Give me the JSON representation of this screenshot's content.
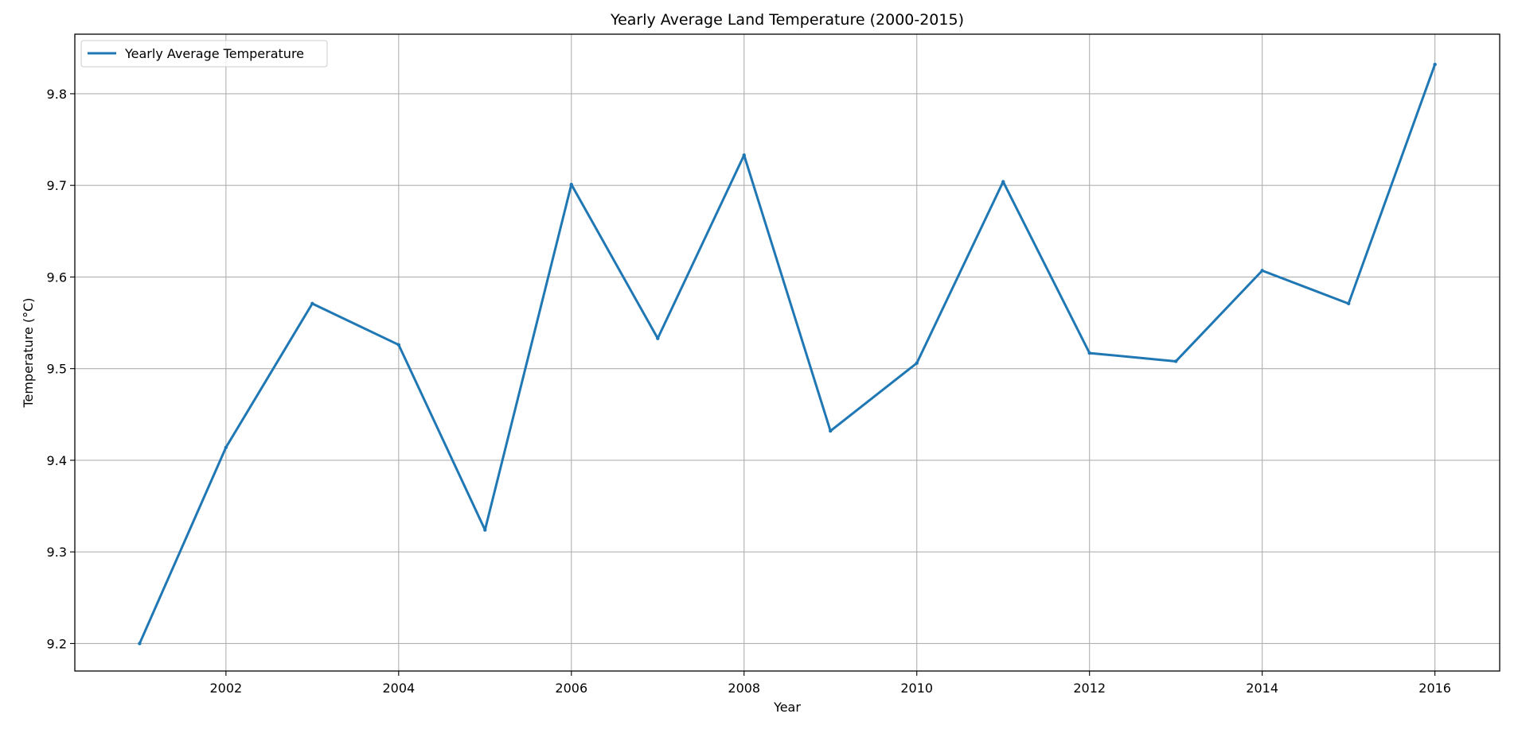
{
  "chart_data": {
    "type": "line",
    "title": "Yearly Average Land Temperature (2000-2015)",
    "xlabel": "Year",
    "ylabel": "Temperature (°C)",
    "xlim": [
      2000.25,
      2016.75
    ],
    "ylim": [
      9.17,
      9.865
    ],
    "x_ticks": [
      2002,
      2004,
      2006,
      2008,
      2010,
      2012,
      2014,
      2016
    ],
    "y_ticks": [
      9.2,
      9.3,
      9.4,
      9.5,
      9.6,
      9.7,
      9.8
    ],
    "grid": true,
    "legend_position": "upper-left",
    "series": [
      {
        "name": "Yearly Average Temperature",
        "color": "#1f77b4",
        "x": [
          2001,
          2002,
          2003,
          2004,
          2005,
          2006,
          2007,
          2008,
          2009,
          2010,
          2011,
          2012,
          2013,
          2014,
          2015,
          2016
        ],
        "y": [
          9.2,
          9.414,
          9.571,
          9.526,
          9.324,
          9.701,
          9.533,
          9.733,
          9.432,
          9.506,
          9.704,
          9.517,
          9.508,
          9.607,
          9.571,
          9.832
        ]
      }
    ]
  }
}
